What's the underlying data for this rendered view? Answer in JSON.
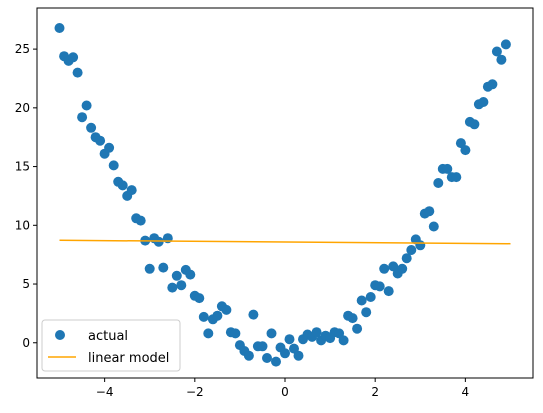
{
  "chart_data": {
    "type": "scatter",
    "title": "",
    "xlabel": "",
    "ylabel": "",
    "xlim": [
      -5.5,
      5.5
    ],
    "ylim": [
      -3.0,
      28.5
    ],
    "grid": false,
    "legend_position": "lower-left",
    "x_ticks": [
      -4,
      -2,
      0,
      2,
      4
    ],
    "x_tick_labels": [
      "−4",
      "−2",
      "0",
      "2",
      "4"
    ],
    "y_ticks": [
      0,
      5,
      10,
      15,
      20,
      25
    ],
    "y_tick_labels": [
      "0",
      "5",
      "10",
      "15",
      "20",
      "25"
    ],
    "series": [
      {
        "name": "actual",
        "kind": "scatter",
        "color": "#1f77b4",
        "points": [
          [
            -5.0,
            26.8
          ],
          [
            -4.9,
            24.4
          ],
          [
            -4.8,
            24.0
          ],
          [
            -4.7,
            24.3
          ],
          [
            -4.6,
            23.0
          ],
          [
            -4.5,
            19.2
          ],
          [
            -4.4,
            20.2
          ],
          [
            -4.3,
            18.3
          ],
          [
            -4.2,
            17.5
          ],
          [
            -4.1,
            17.2
          ],
          [
            -4.0,
            16.1
          ],
          [
            -3.9,
            16.6
          ],
          [
            -3.8,
            15.1
          ],
          [
            -3.7,
            13.7
          ],
          [
            -3.6,
            13.4
          ],
          [
            -3.5,
            12.5
          ],
          [
            -3.4,
            13.0
          ],
          [
            -3.3,
            10.6
          ],
          [
            -3.2,
            10.4
          ],
          [
            -3.1,
            8.7
          ],
          [
            -3.0,
            6.3
          ],
          [
            -2.9,
            8.9
          ],
          [
            -2.8,
            8.6
          ],
          [
            -2.7,
            6.4
          ],
          [
            -2.6,
            8.9
          ],
          [
            -2.5,
            4.7
          ],
          [
            -2.4,
            5.7
          ],
          [
            -2.3,
            4.9
          ],
          [
            -2.2,
            6.2
          ],
          [
            -2.1,
            5.8
          ],
          [
            -2.0,
            4.0
          ],
          [
            -1.9,
            3.8
          ],
          [
            -1.8,
            2.2
          ],
          [
            -1.7,
            0.8
          ],
          [
            -1.6,
            2.0
          ],
          [
            -1.5,
            2.3
          ],
          [
            -1.4,
            3.1
          ],
          [
            -1.3,
            2.8
          ],
          [
            -1.2,
            0.9
          ],
          [
            -1.1,
            0.8
          ],
          [
            -1.0,
            -0.2
          ],
          [
            -0.9,
            -0.7
          ],
          [
            -0.8,
            -1.1
          ],
          [
            -0.7,
            2.4
          ],
          [
            -0.6,
            -0.3
          ],
          [
            -0.5,
            -0.3
          ],
          [
            -0.4,
            -1.3
          ],
          [
            -0.3,
            0.8
          ],
          [
            -0.2,
            -1.6
          ],
          [
            -0.1,
            -0.4
          ],
          [
            0.0,
            -0.9
          ],
          [
            0.1,
            0.3
          ],
          [
            0.2,
            -0.5
          ],
          [
            0.3,
            -1.1
          ],
          [
            0.4,
            0.3
          ],
          [
            0.5,
            0.7
          ],
          [
            0.6,
            0.5
          ],
          [
            0.7,
            0.9
          ],
          [
            0.8,
            0.2
          ],
          [
            0.9,
            0.6
          ],
          [
            1.0,
            0.4
          ],
          [
            1.1,
            0.9
          ],
          [
            1.2,
            0.8
          ],
          [
            1.3,
            0.2
          ],
          [
            1.4,
            2.3
          ],
          [
            1.5,
            2.1
          ],
          [
            1.6,
            1.2
          ],
          [
            1.7,
            3.6
          ],
          [
            1.8,
            2.6
          ],
          [
            1.9,
            3.9
          ],
          [
            2.0,
            4.9
          ],
          [
            2.1,
            4.8
          ],
          [
            2.2,
            6.3
          ],
          [
            2.3,
            4.4
          ],
          [
            2.4,
            6.5
          ],
          [
            2.5,
            5.9
          ],
          [
            2.6,
            6.3
          ],
          [
            2.7,
            7.2
          ],
          [
            2.8,
            7.9
          ],
          [
            2.9,
            8.8
          ],
          [
            3.0,
            8.3
          ],
          [
            3.1,
            11.0
          ],
          [
            3.2,
            11.2
          ],
          [
            3.3,
            9.9
          ],
          [
            3.4,
            13.6
          ],
          [
            3.5,
            14.8
          ],
          [
            3.6,
            14.8
          ],
          [
            3.7,
            14.1
          ],
          [
            3.8,
            14.1
          ],
          [
            3.9,
            17.0
          ],
          [
            4.0,
            16.4
          ],
          [
            4.1,
            18.8
          ],
          [
            4.2,
            18.6
          ],
          [
            4.3,
            20.3
          ],
          [
            4.4,
            20.5
          ],
          [
            4.5,
            21.8
          ],
          [
            4.6,
            22.0
          ],
          [
            4.7,
            24.8
          ],
          [
            4.8,
            24.1
          ],
          [
            4.9,
            25.4
          ]
        ]
      },
      {
        "name": "linear model",
        "kind": "line",
        "color": "#ffa500",
        "points": [
          [
            -5.0,
            8.72
          ],
          [
            5.0,
            8.43
          ]
        ]
      }
    ]
  }
}
